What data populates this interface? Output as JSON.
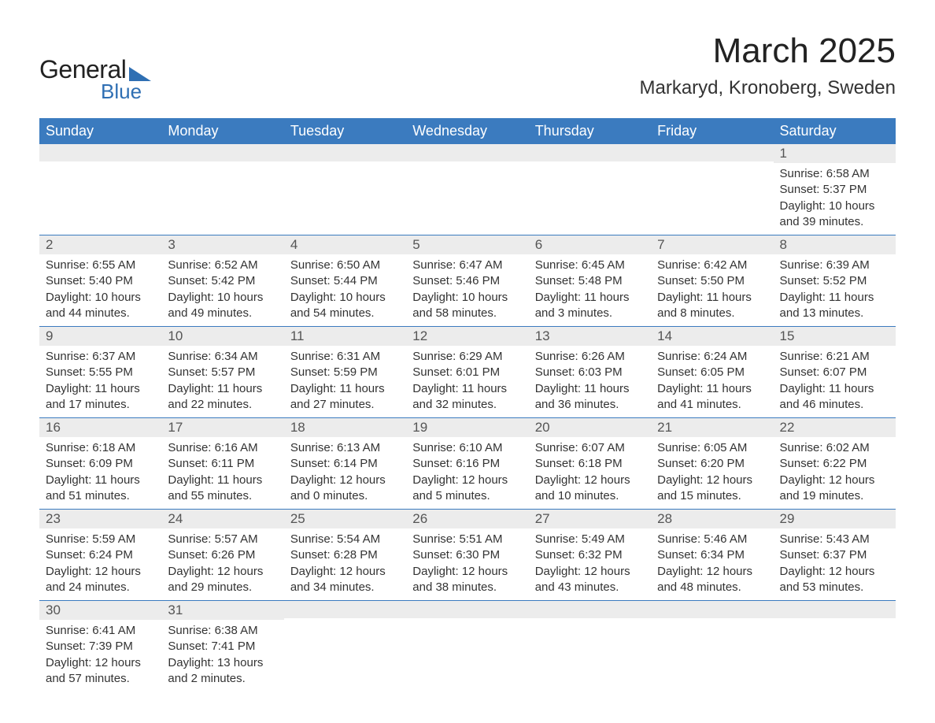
{
  "logo": {
    "text_general": "General",
    "text_blue": "Blue",
    "tri_color": "#2f6fb3"
  },
  "header": {
    "month_title": "March 2025",
    "location": "Markaryd, Kronoberg, Sweden",
    "title_fontsize": 44,
    "location_fontsize": 24
  },
  "calendar": {
    "type": "table",
    "header_bg": "#3b7bbf",
    "header_fg": "#ffffff",
    "row_sep_color": "#3b7bbf",
    "daynum_bg": "#ececec",
    "text_color": "#333333",
    "font_family": "Arial",
    "cell_fontsize": 15,
    "daynum_fontsize": 17,
    "columns": [
      "Sunday",
      "Monday",
      "Tuesday",
      "Wednesday",
      "Thursday",
      "Friday",
      "Saturday"
    ],
    "weeks": [
      [
        null,
        null,
        null,
        null,
        null,
        null,
        {
          "n": "1",
          "sr": "6:58 AM",
          "ss": "5:37 PM",
          "dl": "10 hours and 39 minutes."
        }
      ],
      [
        {
          "n": "2",
          "sr": "6:55 AM",
          "ss": "5:40 PM",
          "dl": "10 hours and 44 minutes."
        },
        {
          "n": "3",
          "sr": "6:52 AM",
          "ss": "5:42 PM",
          "dl": "10 hours and 49 minutes."
        },
        {
          "n": "4",
          "sr": "6:50 AM",
          "ss": "5:44 PM",
          "dl": "10 hours and 54 minutes."
        },
        {
          "n": "5",
          "sr": "6:47 AM",
          "ss": "5:46 PM",
          "dl": "10 hours and 58 minutes."
        },
        {
          "n": "6",
          "sr": "6:45 AM",
          "ss": "5:48 PM",
          "dl": "11 hours and 3 minutes."
        },
        {
          "n": "7",
          "sr": "6:42 AM",
          "ss": "5:50 PM",
          "dl": "11 hours and 8 minutes."
        },
        {
          "n": "8",
          "sr": "6:39 AM",
          "ss": "5:52 PM",
          "dl": "11 hours and 13 minutes."
        }
      ],
      [
        {
          "n": "9",
          "sr": "6:37 AM",
          "ss": "5:55 PM",
          "dl": "11 hours and 17 minutes."
        },
        {
          "n": "10",
          "sr": "6:34 AM",
          "ss": "5:57 PM",
          "dl": "11 hours and 22 minutes."
        },
        {
          "n": "11",
          "sr": "6:31 AM",
          "ss": "5:59 PM",
          "dl": "11 hours and 27 minutes."
        },
        {
          "n": "12",
          "sr": "6:29 AM",
          "ss": "6:01 PM",
          "dl": "11 hours and 32 minutes."
        },
        {
          "n": "13",
          "sr": "6:26 AM",
          "ss": "6:03 PM",
          "dl": "11 hours and 36 minutes."
        },
        {
          "n": "14",
          "sr": "6:24 AM",
          "ss": "6:05 PM",
          "dl": "11 hours and 41 minutes."
        },
        {
          "n": "15",
          "sr": "6:21 AM",
          "ss": "6:07 PM",
          "dl": "11 hours and 46 minutes."
        }
      ],
      [
        {
          "n": "16",
          "sr": "6:18 AM",
          "ss": "6:09 PM",
          "dl": "11 hours and 51 minutes."
        },
        {
          "n": "17",
          "sr": "6:16 AM",
          "ss": "6:11 PM",
          "dl": "11 hours and 55 minutes."
        },
        {
          "n": "18",
          "sr": "6:13 AM",
          "ss": "6:14 PM",
          "dl": "12 hours and 0 minutes."
        },
        {
          "n": "19",
          "sr": "6:10 AM",
          "ss": "6:16 PM",
          "dl": "12 hours and 5 minutes."
        },
        {
          "n": "20",
          "sr": "6:07 AM",
          "ss": "6:18 PM",
          "dl": "12 hours and 10 minutes."
        },
        {
          "n": "21",
          "sr": "6:05 AM",
          "ss": "6:20 PM",
          "dl": "12 hours and 15 minutes."
        },
        {
          "n": "22",
          "sr": "6:02 AM",
          "ss": "6:22 PM",
          "dl": "12 hours and 19 minutes."
        }
      ],
      [
        {
          "n": "23",
          "sr": "5:59 AM",
          "ss": "6:24 PM",
          "dl": "12 hours and 24 minutes."
        },
        {
          "n": "24",
          "sr": "5:57 AM",
          "ss": "6:26 PM",
          "dl": "12 hours and 29 minutes."
        },
        {
          "n": "25",
          "sr": "5:54 AM",
          "ss": "6:28 PM",
          "dl": "12 hours and 34 minutes."
        },
        {
          "n": "26",
          "sr": "5:51 AM",
          "ss": "6:30 PM",
          "dl": "12 hours and 38 minutes."
        },
        {
          "n": "27",
          "sr": "5:49 AM",
          "ss": "6:32 PM",
          "dl": "12 hours and 43 minutes."
        },
        {
          "n": "28",
          "sr": "5:46 AM",
          "ss": "6:34 PM",
          "dl": "12 hours and 48 minutes."
        },
        {
          "n": "29",
          "sr": "5:43 AM",
          "ss": "6:37 PM",
          "dl": "12 hours and 53 minutes."
        }
      ],
      [
        {
          "n": "30",
          "sr": "6:41 AM",
          "ss": "7:39 PM",
          "dl": "12 hours and 57 minutes."
        },
        {
          "n": "31",
          "sr": "6:38 AM",
          "ss": "7:41 PM",
          "dl": "13 hours and 2 minutes."
        },
        null,
        null,
        null,
        null,
        null
      ]
    ],
    "labels": {
      "sunrise": "Sunrise: ",
      "sunset": "Sunset: ",
      "daylight": "Daylight: "
    }
  }
}
